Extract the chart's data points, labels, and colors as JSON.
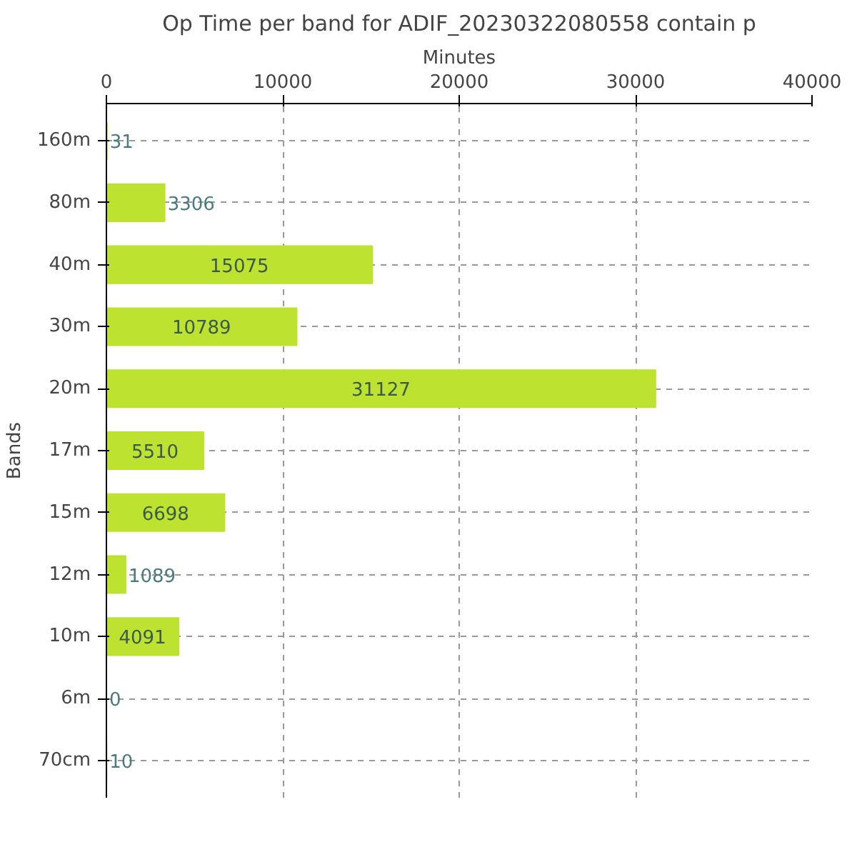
{
  "chart_data": {
    "type": "bar",
    "orientation": "horizontal",
    "title": "Op Time per band for ADIF_20230322080558 contain p",
    "xlabel": "Minutes",
    "ylabel": "Bands",
    "categories": [
      "160m",
      "80m",
      "40m",
      "30m",
      "20m",
      "17m",
      "15m",
      "12m",
      "10m",
      "6m",
      "70cm"
    ],
    "values": [
      31,
      3306,
      15075,
      10789,
      31127,
      5510,
      6698,
      1089,
      4091,
      0,
      10
    ],
    "color": "#bde22f",
    "xlim": [
      0,
      40000
    ],
    "xticks": [
      0,
      10000,
      20000,
      30000,
      40000
    ],
    "grid": true,
    "data_labels": true
  }
}
